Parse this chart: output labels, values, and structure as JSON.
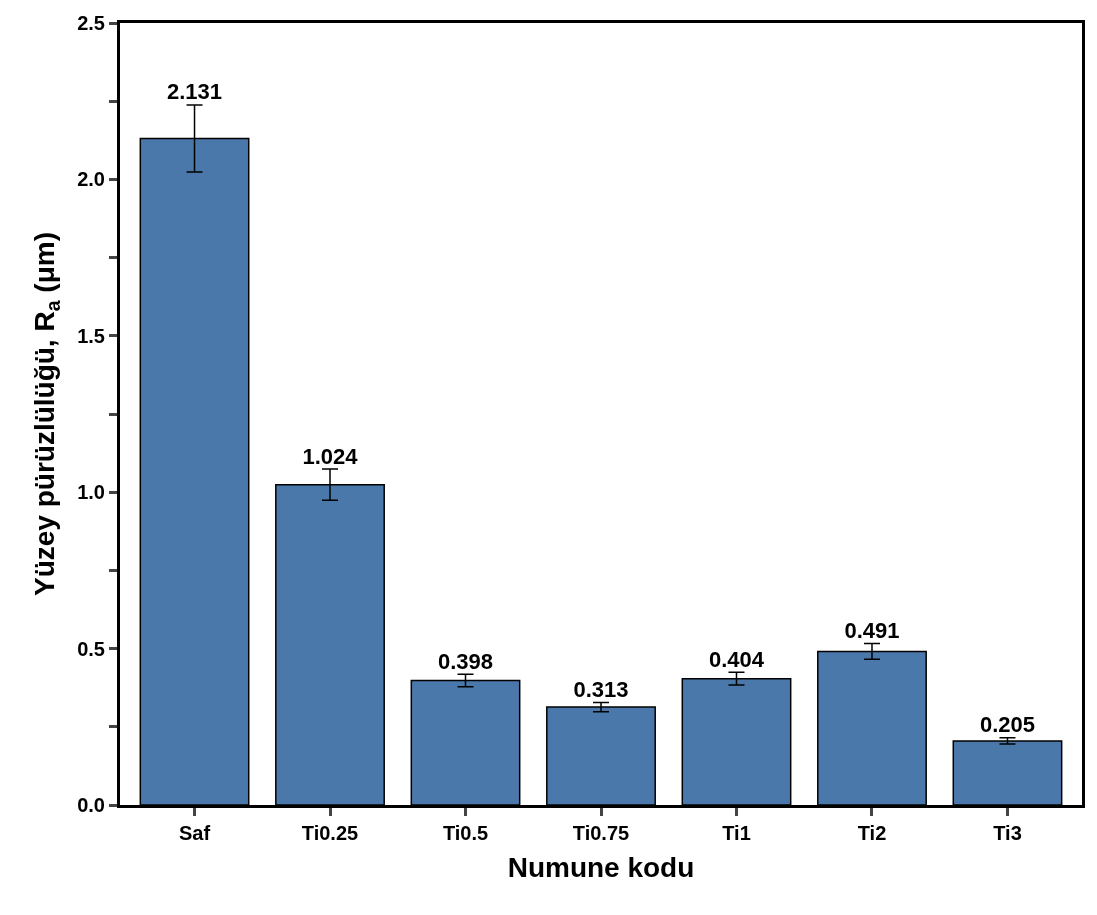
{
  "chart_data": {
    "type": "bar",
    "xlabel": "Numune kodu",
    "ylabel": "Yüzey pürüzlülüğü, R$_{a}$ (μm)",
    "categories": [
      "Saf",
      "Ti0.25",
      "Ti0.5",
      "Ti0.75",
      "Ti1",
      "Ti2",
      "Ti3"
    ],
    "values": [
      2.131,
      1.024,
      0.398,
      0.313,
      0.404,
      0.491,
      0.205
    ],
    "errors": [
      0.107,
      0.05,
      0.02,
      0.015,
      0.02,
      0.025,
      0.01
    ],
    "color": "#4a78ab",
    "data_labels": true,
    "ylim": [
      0,
      2.5
    ],
    "yticks": [
      {
        "value": 0,
        "label": "0.0"
      },
      {
        "value": 0.25,
        "label": null
      },
      {
        "value": 0.5,
        "label": "0.5"
      },
      {
        "value": 0.75,
        "label": null
      },
      {
        "value": 1.0,
        "label": "1.0"
      },
      {
        "value": 1.25,
        "label": null
      },
      {
        "value": 1.5,
        "label": "1.5"
      },
      {
        "value": 1.75,
        "label": null
      },
      {
        "value": 2.0,
        "label": "2.0"
      },
      {
        "value": 2.25,
        "label": null
      },
      {
        "value": 2.5,
        "label": "2.5"
      }
    ],
    "legend": false
  }
}
